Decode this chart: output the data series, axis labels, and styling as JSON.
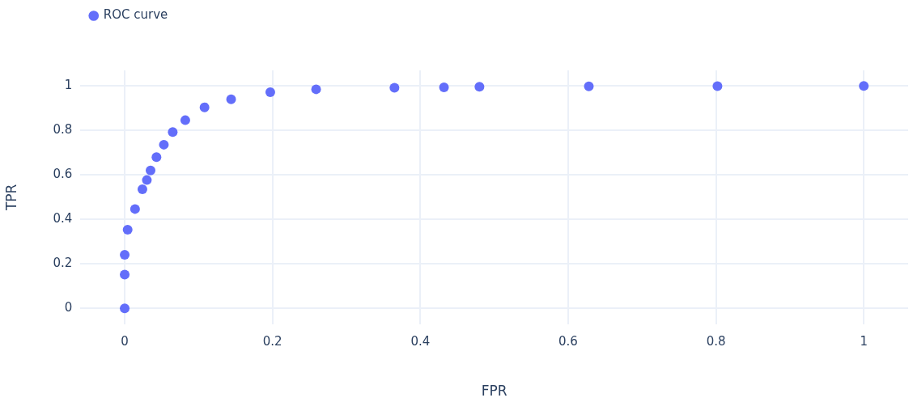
{
  "chart_data": {
    "type": "scatter",
    "xlabel": "FPR",
    "ylabel": "TPR",
    "x": [
      0,
      0,
      0,
      0.004,
      0.014,
      0.024,
      0.03,
      0.035,
      0.043,
      0.053,
      0.065,
      0.082,
      0.108,
      0.144,
      0.197,
      0.259,
      0.365,
      0.432,
      0.48,
      0.628,
      0.802,
      1
    ],
    "series": [
      {
        "name": "ROC curve",
        "color": "#636efa",
        "values": [
          0,
          0.152,
          0.241,
          0.354,
          0.447,
          0.536,
          0.577,
          0.62,
          0.68,
          0.736,
          0.793,
          0.846,
          0.904,
          0.94,
          0.972,
          0.985,
          0.992,
          0.994,
          0.996,
          0.998,
          0.999,
          1
        ]
      }
    ],
    "xlim": [
      -0.06,
      1.06
    ],
    "ylim": [
      -0.07,
      1.07
    ],
    "xticks": [
      0,
      0.2,
      0.4,
      0.6,
      0.8,
      1
    ],
    "yticks": [
      0,
      0.2,
      0.4,
      0.6,
      0.8,
      1
    ],
    "grid": true,
    "legend": "top left",
    "marker": "circle"
  }
}
